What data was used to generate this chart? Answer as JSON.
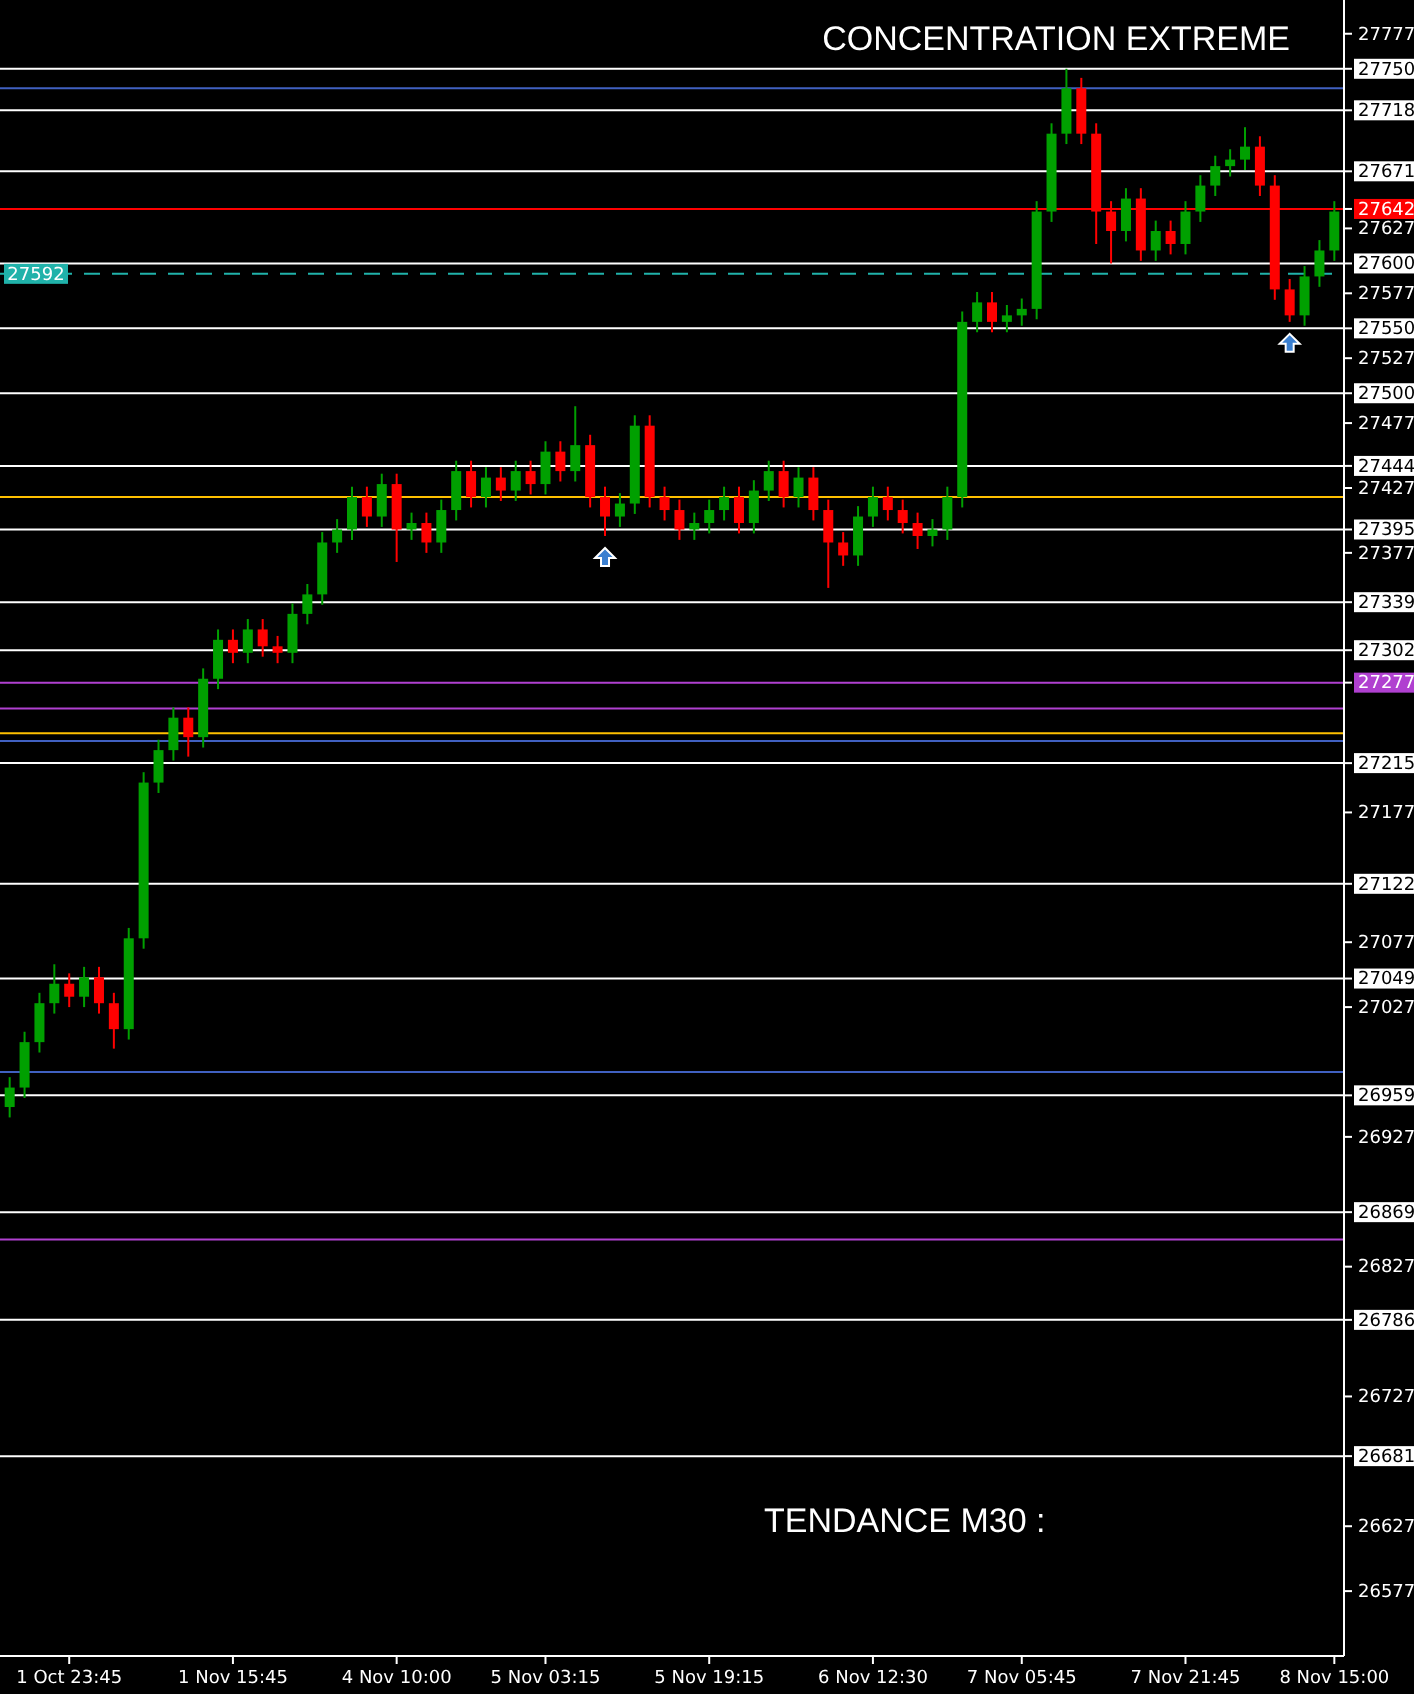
{
  "chart_data": {
    "type": "candlestick",
    "title": "CONCENTRATION EXTREME",
    "annotations": [
      "TENDANCE M30 :"
    ],
    "categories": [
      null,
      null,
      null,
      null,
      "1 Oct 23:45",
      null,
      null,
      null,
      null,
      null,
      null,
      null,
      null,
      null,
      null,
      "1 Nov 15:45",
      null,
      null,
      null,
      null,
      null,
      null,
      null,
      null,
      null,
      null,
      "4 Nov 10:00",
      null,
      null,
      null,
      null,
      null,
      null,
      null,
      null,
      null,
      "5 Nov 03:15",
      null,
      null,
      null,
      null,
      null,
      null,
      null,
      null,
      null,
      null,
      "5 Nov 19:15",
      null,
      null,
      null,
      null,
      null,
      null,
      null,
      null,
      null,
      null,
      "6 Nov 12:30",
      null,
      null,
      null,
      null,
      null,
      null,
      null,
      null,
      null,
      "7 Nov 05:45",
      null,
      null,
      null,
      null,
      null,
      null,
      null,
      null,
      null,
      null,
      "7 Nov 21:45",
      null,
      null,
      null,
      null,
      null,
      null,
      null,
      null,
      null,
      "8 Nov 15:00"
    ],
    "ohlc": [
      [
        26950,
        26973,
        26942,
        26965
      ],
      [
        26965,
        27008,
        26957,
        27000
      ],
      [
        27000,
        27038,
        26992,
        27030
      ],
      [
        27030,
        27060,
        27022,
        27045
      ],
      [
        27045,
        27053,
        27027,
        27035
      ],
      [
        27035,
        27058,
        27027,
        27050
      ],
      [
        27050,
        27058,
        27022,
        27030
      ],
      [
        27030,
        27038,
        26995,
        27010
      ],
      [
        27010,
        27088,
        27002,
        27080
      ],
      [
        27080,
        27208,
        27072,
        27200
      ],
      [
        27200,
        27233,
        27192,
        27225
      ],
      [
        27225,
        27258,
        27217,
        27250
      ],
      [
        27250,
        27258,
        27220,
        27235
      ],
      [
        27235,
        27288,
        27227,
        27280
      ],
      [
        27280,
        27318,
        27272,
        27310
      ],
      [
        27310,
        27318,
        27292,
        27300
      ],
      [
        27300,
        27326,
        27292,
        27318
      ],
      [
        27318,
        27326,
        27297,
        27305
      ],
      [
        27305,
        27313,
        27292,
        27300
      ],
      [
        27300,
        27338,
        27292,
        27330
      ],
      [
        27330,
        27353,
        27322,
        27345
      ],
      [
        27345,
        27393,
        27337,
        27385
      ],
      [
        27385,
        27403,
        27377,
        27395
      ],
      [
        27395,
        27428,
        27387,
        27420
      ],
      [
        27420,
        27428,
        27397,
        27405
      ],
      [
        27405,
        27438,
        27397,
        27430
      ],
      [
        27430,
        27438,
        27370,
        27395
      ],
      [
        27395,
        27408,
        27387,
        27400
      ],
      [
        27400,
        27408,
        27377,
        27385
      ],
      [
        27385,
        27418,
        27377,
        27410
      ],
      [
        27410,
        27448,
        27402,
        27440
      ],
      [
        27440,
        27448,
        27412,
        27420
      ],
      [
        27420,
        27443,
        27412,
        27435
      ],
      [
        27435,
        27443,
        27417,
        27425
      ],
      [
        27425,
        27448,
        27417,
        27440
      ],
      [
        27440,
        27448,
        27422,
        27430
      ],
      [
        27430,
        27463,
        27422,
        27455
      ],
      [
        27455,
        27463,
        27432,
        27440
      ],
      [
        27440,
        27490,
        27432,
        27460
      ],
      [
        27460,
        27468,
        27412,
        27420
      ],
      [
        27420,
        27428,
        27390,
        27405
      ],
      [
        27405,
        27423,
        27397,
        27415
      ],
      [
        27415,
        27483,
        27407,
        27475
      ],
      [
        27475,
        27483,
        27412,
        27420
      ],
      [
        27420,
        27428,
        27402,
        27410
      ],
      [
        27410,
        27418,
        27387,
        27395
      ],
      [
        27395,
        27408,
        27387,
        27400
      ],
      [
        27400,
        27418,
        27392,
        27410
      ],
      [
        27410,
        27428,
        27402,
        27420
      ],
      [
        27420,
        27428,
        27392,
        27400
      ],
      [
        27400,
        27433,
        27392,
        27425
      ],
      [
        27425,
        27448,
        27417,
        27440
      ],
      [
        27440,
        27448,
        27412,
        27420
      ],
      [
        27420,
        27443,
        27412,
        27435
      ],
      [
        27435,
        27443,
        27402,
        27410
      ],
      [
        27410,
        27418,
        27350,
        27385
      ],
      [
        27385,
        27393,
        27367,
        27375
      ],
      [
        27375,
        27413,
        27367,
        27405
      ],
      [
        27405,
        27428,
        27397,
        27420
      ],
      [
        27420,
        27428,
        27402,
        27410
      ],
      [
        27410,
        27418,
        27392,
        27400
      ],
      [
        27400,
        27408,
        27380,
        27390
      ],
      [
        27390,
        27403,
        27382,
        27395
      ],
      [
        27395,
        27428,
        27387,
        27420
      ],
      [
        27420,
        27563,
        27412,
        27555
      ],
      [
        27555,
        27578,
        27547,
        27570
      ],
      [
        27570,
        27578,
        27547,
        27555
      ],
      [
        27555,
        27568,
        27547,
        27560
      ],
      [
        27560,
        27573,
        27552,
        27565
      ],
      [
        27565,
        27648,
        27557,
        27640
      ],
      [
        27640,
        27708,
        27632,
        27700
      ],
      [
        27700,
        27750,
        27692,
        27735
      ],
      [
        27735,
        27743,
        27692,
        27700
      ],
      [
        27700,
        27708,
        27615,
        27640
      ],
      [
        27640,
        27648,
        27600,
        27625
      ],
      [
        27625,
        27658,
        27617,
        27650
      ],
      [
        27650,
        27658,
        27602,
        27610
      ],
      [
        27610,
        27633,
        27602,
        27625
      ],
      [
        27625,
        27633,
        27607,
        27615
      ],
      [
        27615,
        27648,
        27607,
        27640
      ],
      [
        27640,
        27668,
        27632,
        27660
      ],
      [
        27660,
        27683,
        27652,
        27675
      ],
      [
        27675,
        27688,
        27667,
        27680
      ],
      [
        27680,
        27705,
        27672,
        27690
      ],
      [
        27690,
        27698,
        27652,
        27660
      ],
      [
        27660,
        27668,
        27572,
        27580
      ],
      [
        27580,
        27588,
        27555,
        27560
      ],
      [
        27560,
        27598,
        27552,
        27590
      ],
      [
        27590,
        27618,
        27582,
        27610
      ],
      [
        27610,
        27648,
        27602,
        27640
      ]
    ],
    "colors": [
      "#00a000",
      "#00a000",
      "#00a000",
      "#00a000",
      "#ff0000",
      "#00a000",
      "#ff0000",
      "#ff0000",
      "#00a000",
      "#00a000",
      "#00a000",
      "#00a000",
      "#ff0000",
      "#00a000",
      "#00a000",
      "#ff0000",
      "#00a000",
      "#ff0000",
      "#ff0000",
      "#00a000",
      "#00a000",
      "#00a000",
      "#00a000",
      "#00a000",
      "#ff0000",
      "#00a000",
      "#ff0000",
      "#00a000",
      "#ff0000",
      "#00a000",
      "#00a000",
      "#ff0000",
      "#00a000",
      "#ff0000",
      "#00a000",
      "#ff0000",
      "#00a000",
      "#ff0000",
      "#00a000",
      "#ff0000",
      "#ff0000",
      "#00a000",
      "#00a000",
      "#ff0000",
      "#ff0000",
      "#ff0000",
      "#00a000",
      "#00a000",
      "#00a000",
      "#ff0000",
      "#00a000",
      "#00a000",
      "#ff0000",
      "#00a000",
      "#ff0000",
      "#ff0000",
      "#ff0000",
      "#00a000",
      "#00a000",
      "#ff0000",
      "#ff0000",
      "#ff0000",
      "#00a000",
      "#00a000",
      "#00a000",
      "#00a000",
      "#ff0000",
      "#00a000",
      "#00a000",
      "#00a000",
      "#00a000",
      "#00a000",
      "#ff0000",
      "#ff0000",
      "#ff0000",
      "#00a000",
      "#ff0000",
      "#00a000",
      "#ff0000",
      "#00a000",
      "#00a000",
      "#00a000",
      "#00a000",
      "#00a000",
      "#ff0000",
      "#ff0000",
      "#ff0000",
      "#00a000",
      "#00a000",
      "#00a000"
    ],
    "ylim": [
      26527,
      27803
    ],
    "yticks": [
      27777,
      27750,
      27718,
      27671,
      27642,
      27627,
      27600,
      27577,
      27550,
      27527,
      27500,
      27477,
      27444,
      27427,
      27395,
      27377,
      27339,
      27302,
      27277,
      27215,
      27177,
      27122,
      27077,
      27049,
      27027,
      26959,
      26927,
      26869,
      26827,
      26786,
      26727,
      26681,
      26627,
      26577
    ],
    "ref_lines": [
      {
        "axis": "y",
        "value": 27750,
        "label": null,
        "color": "#ffffff"
      },
      {
        "axis": "y",
        "value": 27735,
        "label": null,
        "color": "#4060c0"
      },
      {
        "axis": "y",
        "value": 27718,
        "label": null,
        "color": "#ffffff"
      },
      {
        "axis": "y",
        "value": 27671,
        "label": null,
        "color": "#ffffff"
      },
      {
        "axis": "y",
        "value": 27642,
        "label": null,
        "color": "#ff0000"
      },
      {
        "axis": "y",
        "value": 27600,
        "label": null,
        "color": "#ffffff"
      },
      {
        "axis": "y",
        "value": 27592,
        "label": "27592",
        "color": "#20b2aa",
        "line_style": "dashed"
      },
      {
        "axis": "y",
        "value": 27550,
        "label": null,
        "color": "#ffffff"
      },
      {
        "axis": "y",
        "value": 27500,
        "label": null,
        "color": "#ffffff"
      },
      {
        "axis": "y",
        "value": 27444,
        "label": null,
        "color": "#ffffff"
      },
      {
        "axis": "y",
        "value": 27420,
        "label": null,
        "color": "#ffc000"
      },
      {
        "axis": "y",
        "value": 27395,
        "label": null,
        "color": "#ffffff"
      },
      {
        "axis": "y",
        "value": 27339,
        "label": null,
        "color": "#ffffff"
      },
      {
        "axis": "y",
        "value": 27302,
        "label": null,
        "color": "#ffffff"
      },
      {
        "axis": "y",
        "value": 27277,
        "label": null,
        "color": "#b040d0"
      },
      {
        "axis": "y",
        "value": 27257,
        "label": null,
        "color": "#b040d0"
      },
      {
        "axis": "y",
        "value": 27238,
        "label": null,
        "color": "#ffc000"
      },
      {
        "axis": "y",
        "value": 27232,
        "label": null,
        "color": "#4060c0"
      },
      {
        "axis": "y",
        "value": 27215,
        "label": null,
        "color": "#ffffff"
      },
      {
        "axis": "y",
        "value": 27122,
        "label": null,
        "color": "#ffffff"
      },
      {
        "axis": "y",
        "value": 27049,
        "label": null,
        "color": "#ffffff"
      },
      {
        "axis": "y",
        "value": 26977,
        "label": null,
        "color": "#4060c0"
      },
      {
        "axis": "y",
        "value": 26959,
        "label": null,
        "color": "#ffffff"
      },
      {
        "axis": "y",
        "value": 26869,
        "label": null,
        "color": "#ffffff"
      },
      {
        "axis": "y",
        "value": 26848,
        "label": null,
        "color": "#b040d0"
      },
      {
        "axis": "y",
        "value": 26786,
        "label": null,
        "color": "#ffffff"
      },
      {
        "axis": "y",
        "value": 26681,
        "label": null,
        "color": "#ffffff"
      }
    ]
  }
}
